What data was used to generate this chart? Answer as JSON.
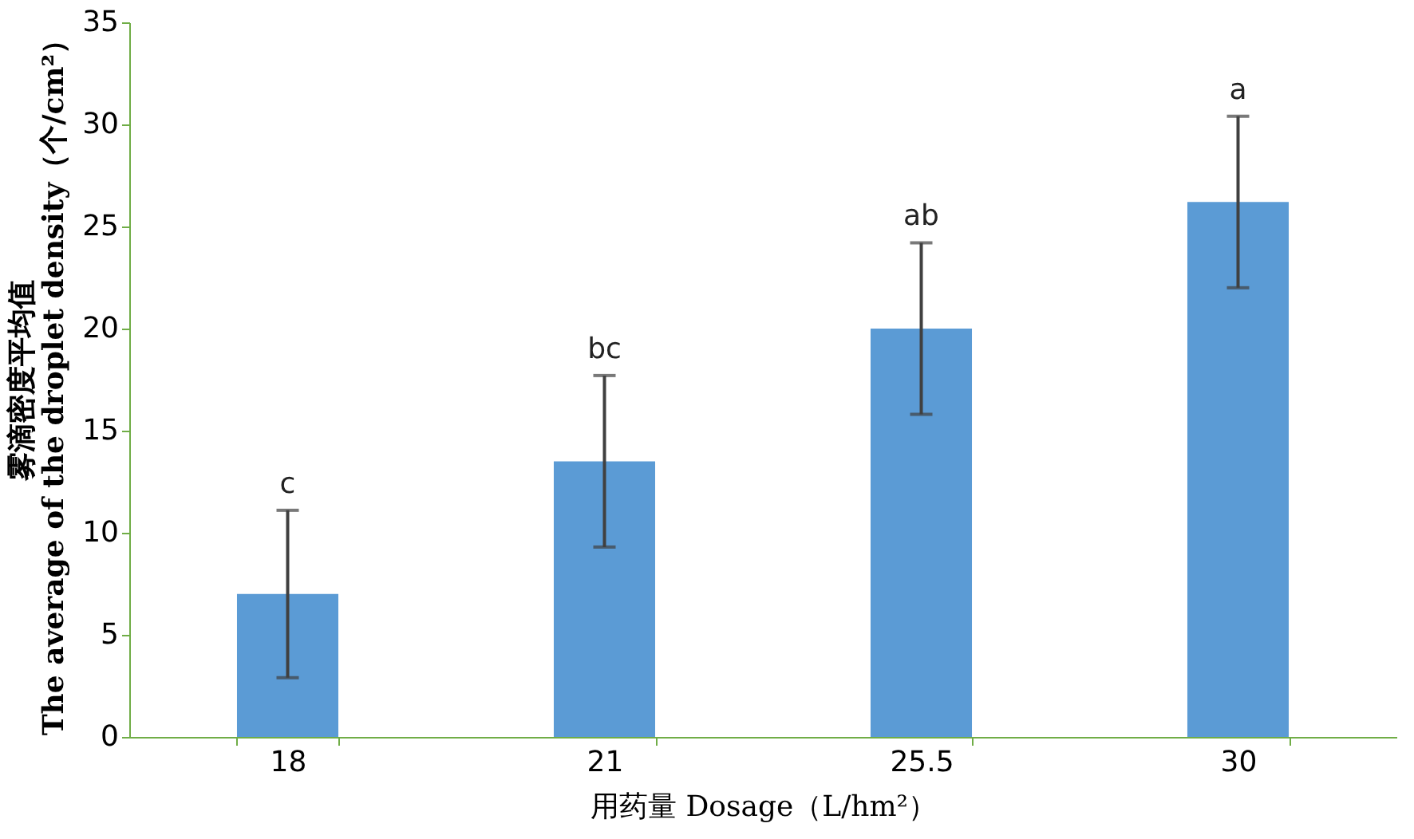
{
  "chart_data": {
    "type": "bar",
    "xlabel": "用药量 Dosage（L/hm²）",
    "ylabel": "雾滴密度平均值\nThe average of the droplet density（个/cm²）",
    "categories": [
      "18",
      "21",
      "25.5",
      "30"
    ],
    "values": [
      7.0,
      13.5,
      20.0,
      26.2
    ],
    "color": "#5b9bd5",
    "errors": [
      4.1,
      4.2,
      4.2,
      4.2
    ],
    "ylim": [
      0,
      35
    ],
    "yticks": [
      0,
      5,
      10,
      15,
      20,
      25,
      30,
      35
    ],
    "grid": false,
    "annotations": [
      {
        "text": "c",
        "x": "18",
        "y": 11.1
      },
      {
        "text": "bc",
        "x": "21",
        "y": 17.7
      },
      {
        "text": "ab",
        "x": "25.5",
        "y": 24.2
      },
      {
        "text": "a",
        "x": "30",
        "y": 30.4
      }
    ]
  }
}
